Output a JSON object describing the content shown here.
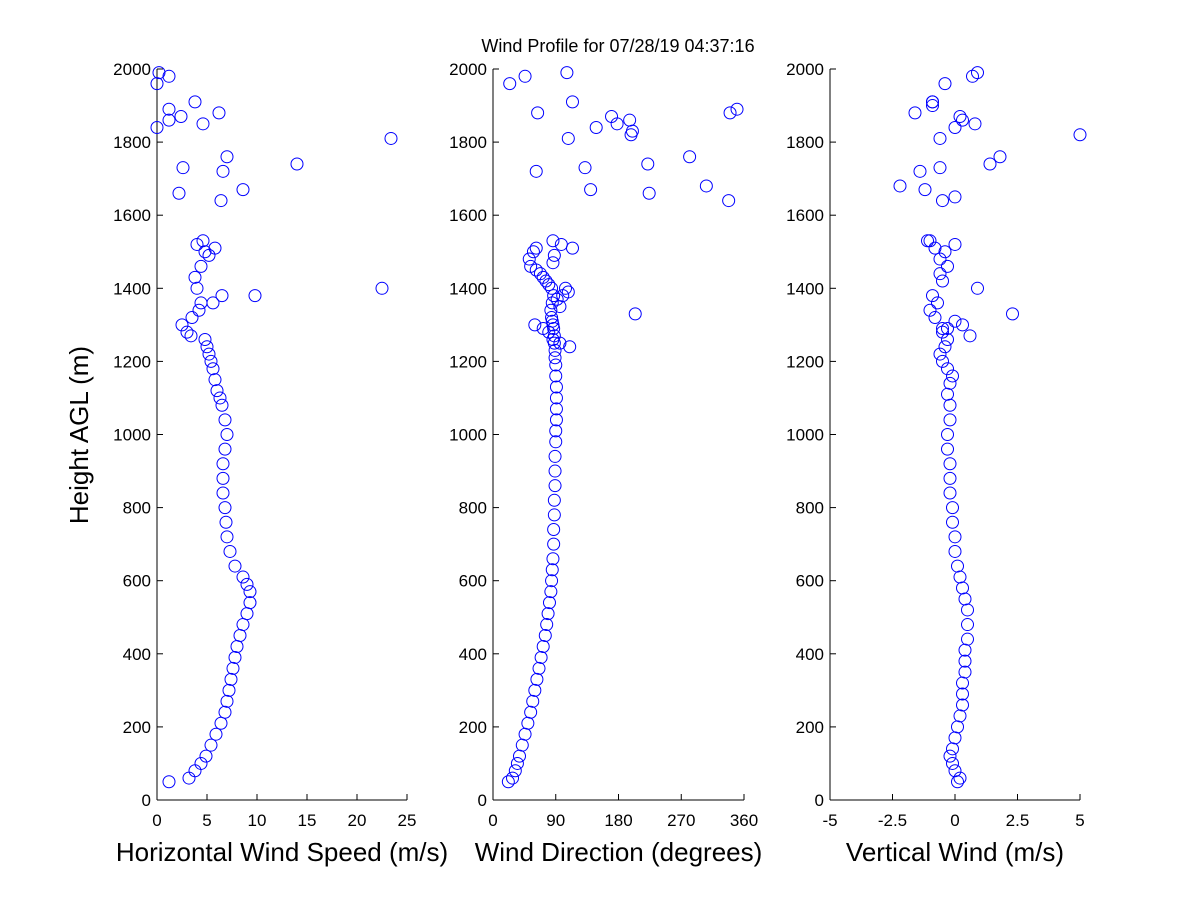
{
  "title": "Wind Profile for  07/28/19 04:37:16",
  "ylabel": "Height AGL (m)",
  "chart_data": [
    {
      "type": "scatter",
      "xlabel": "Horizontal Wind Speed (m/s)",
      "ylabel": "Height AGL (m)",
      "xlim": [
        0,
        25
      ],
      "ylim": [
        0,
        2000
      ],
      "xticks": [
        0,
        5,
        10,
        15,
        20,
        25
      ],
      "xtick_labels": [
        "0",
        "5",
        "10",
        "15",
        "20",
        "25"
      ],
      "yticks": [
        0,
        200,
        400,
        600,
        800,
        1000,
        1200,
        1400,
        1600,
        1800,
        2000
      ],
      "yticks_labels": [
        "0",
        "200",
        "400",
        "600",
        "800",
        "1000",
        "1200",
        "1400",
        "1600",
        "1800",
        "2000"
      ],
      "marker_color": "#0000ff",
      "x": [
        1.2,
        3.2,
        3.8,
        4.4,
        4.9,
        5.4,
        5.9,
        6.4,
        6.8,
        7.0,
        7.2,
        7.4,
        7.6,
        7.8,
        8.0,
        8.3,
        8.6,
        9.0,
        9.3,
        9.3,
        9.0,
        8.6,
        7.8,
        7.3,
        7.0,
        6.9,
        6.8,
        6.6,
        6.6,
        6.6,
        6.8,
        7.0,
        6.8,
        6.5,
        6.3,
        6.0,
        5.8,
        5.6,
        5.4,
        5.2,
        5.0,
        4.8,
        3.0,
        2.5,
        3.5,
        4.2,
        5.6,
        6.5,
        4.0,
        3.8,
        4.4,
        5.2,
        5.8,
        4.0,
        4.6,
        4.8,
        22.5,
        9.8,
        3.4,
        4.4,
        2.2,
        6.4,
        8.6,
        2.6,
        6.6,
        7.0,
        14.0,
        0.0,
        1.2,
        23.4,
        4.6,
        1.2,
        2.4,
        6.2,
        3.8,
        0.0,
        1.2,
        0.2
      ],
      "y": [
        50,
        60,
        80,
        100,
        120,
        150,
        180,
        210,
        240,
        270,
        300,
        330,
        360,
        390,
        420,
        450,
        480,
        510,
        540,
        570,
        590,
        610,
        640,
        680,
        720,
        760,
        800,
        840,
        880,
        920,
        960,
        1000,
        1040,
        1080,
        1100,
        1120,
        1150,
        1180,
        1200,
        1220,
        1240,
        1260,
        1280,
        1300,
        1320,
        1340,
        1360,
        1380,
        1400,
        1430,
        1460,
        1490,
        1510,
        1520,
        1530,
        1500,
        1400,
        1380,
        1270,
        1360,
        1660,
        1640,
        1670,
        1730,
        1720,
        1760,
        1740,
        1840,
        1860,
        1810,
        1850,
        1890,
        1870,
        1880,
        1910,
        1960,
        1980,
        1990
      ]
    },
    {
      "type": "scatter",
      "xlabel": "Wind Direction (degrees)",
      "ylabel": "",
      "xlim": [
        0,
        360
      ],
      "ylim": [
        0,
        2000
      ],
      "xticks": [
        0,
        90,
        180,
        270,
        360
      ],
      "xtick_labels": [
        "0",
        "90",
        "180",
        "270",
        "360"
      ],
      "yticks": [
        0,
        200,
        400,
        600,
        800,
        1000,
        1200,
        1400,
        1600,
        1800,
        2000
      ],
      "yticks_labels": [
        "0",
        "200",
        "400",
        "600",
        "800",
        "1000",
        "1200",
        "1400",
        "1600",
        "1800",
        "2000"
      ],
      "marker_color": "#0000ff",
      "x": [
        22,
        28,
        32,
        35,
        38,
        42,
        46,
        50,
        54,
        57,
        60,
        63,
        66,
        69,
        72,
        75,
        77,
        79,
        81,
        83,
        84,
        85,
        86,
        87,
        87,
        88,
        88,
        89,
        89,
        89,
        90,
        90,
        91,
        91,
        91,
        91,
        90,
        90,
        89,
        89,
        88,
        88,
        87,
        86,
        85,
        84,
        83,
        85,
        87,
        84,
        80,
        76,
        72,
        68,
        62,
        54,
        52,
        58,
        62,
        98,
        86,
        86,
        88,
        204,
        108,
        96,
        92,
        100,
        104,
        72,
        86,
        60,
        80,
        96,
        110,
        62,
        132,
        140,
        222,
        224,
        282,
        306,
        338,
        340,
        108,
        148,
        170,
        178,
        198,
        196,
        114,
        200,
        350,
        64,
        24,
        46,
        106,
        114
      ],
      "y": [
        50,
        60,
        80,
        100,
        120,
        150,
        180,
        210,
        240,
        270,
        300,
        330,
        360,
        390,
        420,
        450,
        480,
        510,
        540,
        570,
        600,
        630,
        660,
        700,
        740,
        780,
        820,
        860,
        900,
        940,
        980,
        1010,
        1040,
        1070,
        1100,
        1130,
        1160,
        1190,
        1210,
        1230,
        1250,
        1270,
        1290,
        1300,
        1310,
        1320,
        1340,
        1360,
        1380,
        1400,
        1410,
        1420,
        1430,
        1440,
        1450,
        1460,
        1480,
        1500,
        1510,
        1520,
        1530,
        1470,
        1490,
        1330,
        1390,
        1350,
        1370,
        1380,
        1400,
        1290,
        1260,
        1300,
        1280,
        1250,
        1240,
        1720,
        1730,
        1670,
        1740,
        1660,
        1760,
        1680,
        1640,
        1880,
        1810,
        1840,
        1870,
        1850,
        1820,
        1860,
        1910,
        1830,
        1890,
        1880,
        1960,
        1980,
        1990,
        1510
      ]
    },
    {
      "type": "scatter",
      "xlabel": "Vertical Wind (m/s)",
      "ylabel": "",
      "xlim": [
        -5,
        5
      ],
      "ylim": [
        0,
        2000
      ],
      "xticks": [
        -5,
        -2.5,
        0,
        2.5,
        5
      ],
      "xtick_labels": [
        "-5",
        "-2.5",
        "0",
        "2.5",
        "5"
      ],
      "yticks": [
        0,
        200,
        400,
        600,
        800,
        1000,
        1200,
        1400,
        1600,
        1800,
        2000
      ],
      "yticks_labels": [
        "0",
        "200",
        "400",
        "600",
        "800",
        "1000",
        "1200",
        "1400",
        "1600",
        "1800",
        "2000"
      ],
      "marker_color": "#0000ff",
      "x": [
        0.1,
        0.2,
        0.0,
        -0.1,
        -0.2,
        -0.1,
        0.0,
        0.1,
        0.2,
        0.3,
        0.3,
        0.3,
        0.4,
        0.4,
        0.4,
        0.5,
        0.5,
        0.5,
        0.4,
        0.3,
        0.2,
        0.1,
        0.0,
        0.0,
        -0.1,
        -0.1,
        -0.2,
        -0.2,
        -0.2,
        -0.3,
        -0.3,
        -0.2,
        -0.2,
        -0.3,
        -0.2,
        -0.1,
        -0.3,
        -0.5,
        -0.6,
        -0.4,
        -0.3,
        -0.5,
        -0.8,
        -1.0,
        -0.7,
        -0.9,
        -0.5,
        -0.6,
        -0.3,
        -0.6,
        -0.4,
        -0.8,
        -1.1,
        -1.0,
        2.3,
        0.9,
        0.3,
        0.0,
        0.0,
        -0.5,
        -1.4,
        -2.2,
        -1.2,
        -0.6,
        -0.9,
        1.4,
        1.8,
        0.0,
        0.2,
        0.3,
        0.0,
        -0.6,
        -0.9,
        -1.6,
        -0.9,
        0.8,
        0.9,
        0.7,
        5.0,
        -0.4,
        -0.3,
        0.6,
        -0.5
      ],
      "y": [
        50,
        60,
        80,
        100,
        120,
        140,
        170,
        200,
        230,
        260,
        290,
        320,
        350,
        380,
        410,
        440,
        480,
        520,
        550,
        580,
        610,
        640,
        680,
        720,
        760,
        800,
        840,
        880,
        920,
        960,
        1000,
        1040,
        1080,
        1110,
        1140,
        1160,
        1180,
        1200,
        1220,
        1240,
        1260,
        1280,
        1320,
        1340,
        1360,
        1380,
        1420,
        1440,
        1460,
        1480,
        1500,
        1510,
        1530,
        1530,
        1330,
        1400,
        1300,
        1310,
        1520,
        1640,
        1720,
        1680,
        1670,
        1730,
        1910,
        1740,
        1760,
        1650,
        1870,
        1860,
        1840,
        1810,
        1900,
        1880,
        1910,
        1850,
        1990,
        1980,
        1820,
        1960,
        1290,
        1270,
        1290
      ]
    }
  ]
}
